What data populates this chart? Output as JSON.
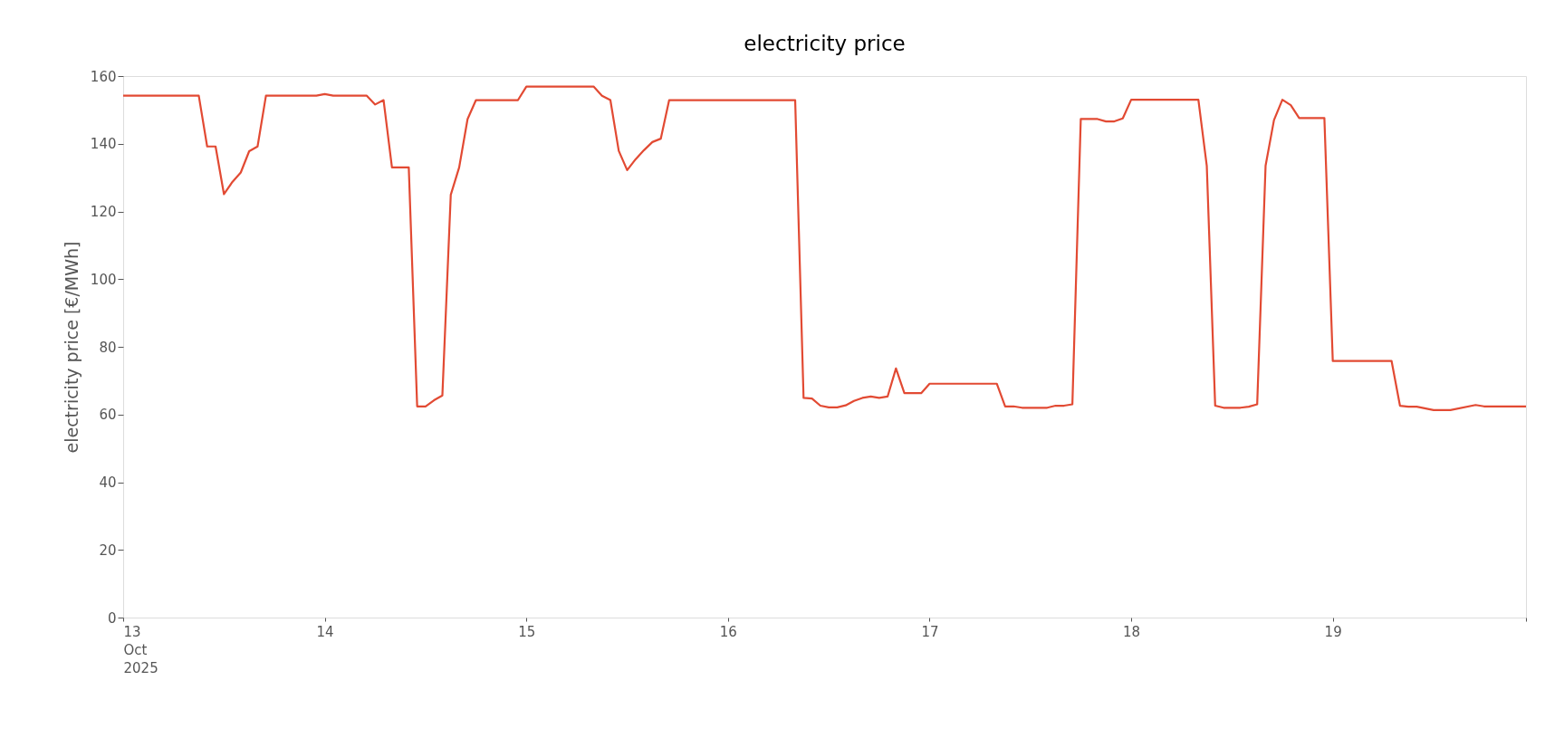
{
  "chart_data": {
    "type": "line",
    "title": "electricity price",
    "ylabel": "electricity price [€/MWh]",
    "x": [
      "2025-10-13T00:00",
      "2025-10-13T09:00",
      "2025-10-13T10:00",
      "2025-10-13T11:00",
      "2025-10-13T12:00",
      "2025-10-13T13:00",
      "2025-10-13T14:00",
      "2025-10-13T15:00",
      "2025-10-13T16:00",
      "2025-10-13T17:00",
      "2025-10-13T23:00",
      "2025-10-14T00:00",
      "2025-10-14T01:00",
      "2025-10-14T05:00",
      "2025-10-14T06:00",
      "2025-10-14T07:00",
      "2025-10-14T08:00",
      "2025-10-14T10:00",
      "2025-10-14T11:00",
      "2025-10-14T12:00",
      "2025-10-14T13:00",
      "2025-10-14T14:00",
      "2025-10-14T15:00",
      "2025-10-14T16:00",
      "2025-10-14T17:00",
      "2025-10-14T18:00",
      "2025-10-14T23:00",
      "2025-10-15T00:00",
      "2025-10-15T08:00",
      "2025-10-15T09:00",
      "2025-10-15T10:00",
      "2025-10-15T11:00",
      "2025-10-15T12:00",
      "2025-10-15T13:00",
      "2025-10-15T14:00",
      "2025-10-15T15:00",
      "2025-10-15T16:00",
      "2025-10-15T17:00",
      "2025-10-16T08:00",
      "2025-10-16T09:00",
      "2025-10-16T10:00",
      "2025-10-16T11:00",
      "2025-10-16T12:00",
      "2025-10-16T13:00",
      "2025-10-16T14:00",
      "2025-10-16T15:00",
      "2025-10-16T16:00",
      "2025-10-16T17:00",
      "2025-10-16T18:00",
      "2025-10-16T19:00",
      "2025-10-16T20:00",
      "2025-10-16T21:00",
      "2025-10-16T23:00",
      "2025-10-17T00:00",
      "2025-10-17T08:00",
      "2025-10-17T09:00",
      "2025-10-17T10:00",
      "2025-10-17T11:00",
      "2025-10-17T14:00",
      "2025-10-17T15:00",
      "2025-10-17T16:00",
      "2025-10-17T17:00",
      "2025-10-17T18:00",
      "2025-10-17T20:00",
      "2025-10-17T21:00",
      "2025-10-17T22:00",
      "2025-10-17T23:00",
      "2025-10-18T00:00",
      "2025-10-18T08:00",
      "2025-10-18T09:00",
      "2025-10-18T10:00",
      "2025-10-18T11:00",
      "2025-10-18T13:00",
      "2025-10-18T14:00",
      "2025-10-18T15:00",
      "2025-10-18T16:00",
      "2025-10-18T17:00",
      "2025-10-18T18:00",
      "2025-10-18T19:00",
      "2025-10-18T20:00",
      "2025-10-18T23:00",
      "2025-10-19T00:00",
      "2025-10-19T07:00",
      "2025-10-19T08:00",
      "2025-10-19T09:00",
      "2025-10-19T10:00",
      "2025-10-19T12:00",
      "2025-10-19T14:00",
      "2025-10-19T17:00",
      "2025-10-19T18:00",
      "2025-10-19T23:00"
    ],
    "series": [
      {
        "color": "#e24a33",
        "values": [
          154.2,
          154.2,
          139.2,
          139.2,
          125.1,
          128.7,
          131.5,
          137.8,
          139.2,
          154.2,
          154.2,
          154.7,
          154.2,
          154.2,
          151.6,
          152.9,
          133,
          133,
          62.4,
          62.4,
          64.2,
          65.6,
          124.9,
          133,
          147.3,
          152.9,
          152.9,
          156.9,
          156.9,
          154.2,
          152.9,
          137.9,
          132.2,
          135.4,
          138.1,
          140.5,
          141.5,
          152.9,
          152.9,
          64.9,
          64.7,
          62.6,
          62.1,
          62.1,
          62.7,
          64,
          64.9,
          65.3,
          64.9,
          65.3,
          73.6,
          66.3,
          66.3,
          69.1,
          69.1,
          62.4,
          62.4,
          62,
          62,
          62.6,
          62.6,
          63,
          147.3,
          147.3,
          146.6,
          146.6,
          147.5,
          153,
          153,
          133.5,
          62.6,
          62,
          62,
          62.3,
          63,
          133.5,
          147,
          153,
          151.4,
          147.6,
          147.6,
          75.8,
          75.8,
          62.6,
          62.3,
          62.3,
          61.3,
          61.3,
          62.8,
          62.4,
          62.4
        ]
      }
    ],
    "xlim": [
      "2025-10-13T00:00",
      "2025-10-19T23:00"
    ],
    "xticks": [
      {
        "value": "2025-10-13T00:00",
        "label": "13\nOct\n2025"
      },
      {
        "value": "2025-10-14T00:00",
        "label": "14"
      },
      {
        "value": "2025-10-15T00:00",
        "label": "15"
      },
      {
        "value": "2025-10-16T00:00",
        "label": "16"
      },
      {
        "value": "2025-10-17T00:00",
        "label": "17"
      },
      {
        "value": "2025-10-18T00:00",
        "label": "18"
      },
      {
        "value": "2025-10-19T00:00",
        "label": "19"
      },
      {
        "value": "2025-10-19T23:00",
        "label": null
      }
    ],
    "ylim": [
      0,
      160
    ],
    "yticks": [
      0,
      20,
      40,
      60,
      80,
      100,
      120,
      140,
      160
    ],
    "grid": false,
    "line_style": "solid"
  }
}
